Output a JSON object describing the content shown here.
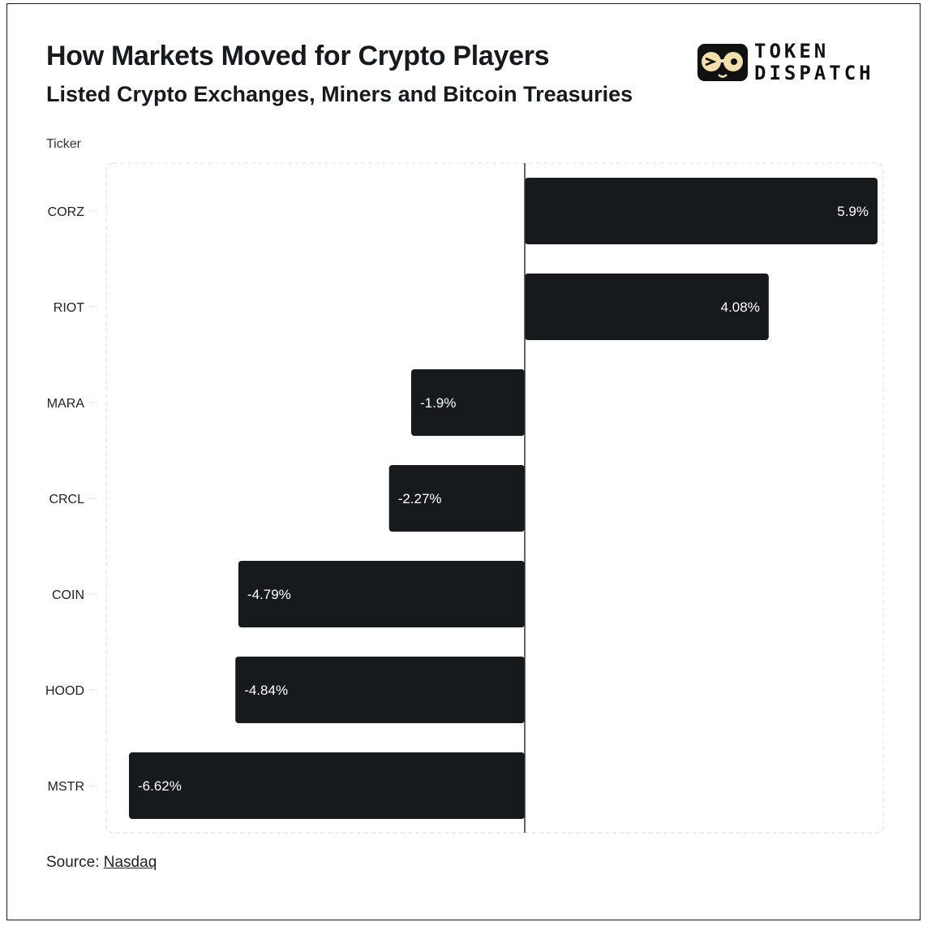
{
  "header": {
    "title": "How Markets Moved for Crypto Players",
    "subtitle": "Listed Crypto Exchanges, Miners and Bitcoin Treasuries"
  },
  "logo": {
    "line1": "TOKEN",
    "line2": "DISPATCH"
  },
  "source": {
    "prefix": "Source:",
    "link_text": "Nasdaq"
  },
  "colors": {
    "bar": "#161a1d",
    "bar_label": "#ffffff",
    "zero_line": "#333333",
    "plot_border": "#dddddd"
  },
  "chart_data": {
    "type": "bar",
    "orientation": "horizontal",
    "ylabel": "Ticker",
    "categories": [
      "CORZ",
      "RIOT",
      "MARA",
      "CRCL",
      "COIN",
      "HOOD",
      "MSTR"
    ],
    "values": [
      5.9,
      4.08,
      -1.9,
      -2.27,
      -4.79,
      -4.84,
      -6.62
    ],
    "data_labels": [
      "5.9%",
      "4.08%",
      "-1.9%",
      "-2.27%",
      "-4.79%",
      "-4.84%",
      "-6.62%"
    ],
    "xlim": [
      -6.62,
      5.9
    ],
    "grid": false,
    "legend": "none"
  }
}
